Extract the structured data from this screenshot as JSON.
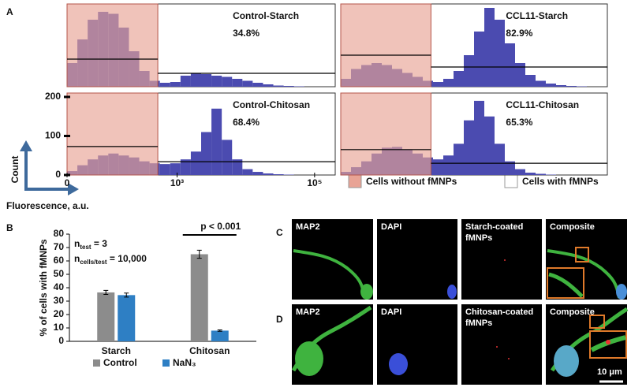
{
  "figure": {
    "panel_labels": [
      "A",
      "B",
      "C",
      "D"
    ]
  },
  "panel_a": {
    "x_label": "Fluorescence, a.u.",
    "y_label": "Count",
    "legend": [
      {
        "name": "Cells without fMNPs",
        "color": "#e8a395"
      },
      {
        "name": "Cells with fMNPs",
        "color": "#ffffff"
      }
    ]
  },
  "chart_data": [
    {
      "type": "histogram",
      "title": "Control-Starch",
      "subtitle": "34.8%",
      "color": "#4b4bb0",
      "gate_color": "#e8a395",
      "bins": [
        1.4,
        1.55,
        1.7,
        1.85,
        2,
        2.15,
        2.3,
        2.45,
        2.6,
        2.75,
        2.9,
        3.05,
        3.2,
        3.35,
        3.5,
        3.65,
        3.8,
        3.95,
        4.1,
        4.25,
        4.4,
        4.55,
        4.7,
        4.85,
        5,
        5.15,
        5.3
      ],
      "values": [
        60,
        120,
        170,
        190,
        185,
        150,
        90,
        40,
        15,
        10,
        12,
        28,
        35,
        32,
        28,
        25,
        20,
        15,
        10,
        6,
        3,
        2,
        1,
        0,
        0,
        0
      ],
      "gate_upper": 2.72,
      "gate_levels": [
        70,
        34
      ],
      "xlim": [
        1.4,
        5.3
      ],
      "ylim": [
        0,
        210
      ]
    },
    {
      "type": "histogram",
      "title": "CCL11-Starch",
      "subtitle": "82.9%",
      "color": "#4b4bb0",
      "gate_color": "#e8a395",
      "bins": [
        1.4,
        1.55,
        1.7,
        1.85,
        2,
        2.15,
        2.3,
        2.45,
        2.6,
        2.75,
        2.9,
        3.05,
        3.2,
        3.35,
        3.5,
        3.65,
        3.8,
        3.95,
        4.1,
        4.25,
        4.4,
        4.55,
        4.7,
        4.85,
        5,
        5.15,
        5.3
      ],
      "values": [
        20,
        45,
        55,
        60,
        55,
        45,
        35,
        25,
        15,
        12,
        20,
        40,
        80,
        140,
        200,
        170,
        110,
        60,
        30,
        15,
        8,
        4,
        2,
        1,
        0,
        0
      ],
      "gate_upper": 2.72,
      "gate_levels": [
        80,
        50
      ],
      "xlim": [
        1.4,
        5.3
      ],
      "ylim": [
        0,
        210
      ]
    },
    {
      "type": "histogram",
      "title": "Control-Chitosan",
      "subtitle": "68.4%",
      "color": "#4b4bb0",
      "gate_color": "#e8a395",
      "bins": [
        1.4,
        1.55,
        1.7,
        1.85,
        2,
        2.15,
        2.3,
        2.45,
        2.6,
        2.75,
        2.9,
        3.05,
        3.2,
        3.35,
        3.5,
        3.65,
        3.8,
        3.95,
        4.1,
        4.25,
        4.4,
        4.55,
        4.7,
        4.85,
        5,
        5.15,
        5.3
      ],
      "values": [
        10,
        25,
        40,
        50,
        55,
        50,
        45,
        35,
        30,
        28,
        30,
        40,
        60,
        110,
        170,
        90,
        40,
        15,
        8,
        4,
        2,
        1,
        0,
        0,
        0,
        0
      ],
      "gate_upper": 2.72,
      "gate_levels": [
        73,
        34
      ],
      "xlim": [
        1.4,
        5.3
      ],
      "ylim": [
        0,
        210
      ],
      "xticks": [
        {
          "value": 1.4,
          "label": "0"
        },
        {
          "value": 3,
          "label": "10³"
        },
        {
          "value": 5,
          "label": "10⁵"
        }
      ],
      "yticks": [
        0,
        100,
        200
      ]
    },
    {
      "type": "histogram",
      "title": "CCL11-Chitosan",
      "subtitle": "65.3%",
      "color": "#4b4bb0",
      "gate_color": "#e8a395",
      "bins": [
        1.4,
        1.55,
        1.7,
        1.85,
        2,
        2.15,
        2.3,
        2.45,
        2.6,
        2.75,
        2.9,
        3.05,
        3.2,
        3.35,
        3.5,
        3.65,
        3.8,
        3.95,
        4.1,
        4.25,
        4.4,
        4.55,
        4.7,
        4.85,
        5,
        5.15,
        5.3
      ],
      "values": [
        8,
        20,
        35,
        55,
        70,
        72,
        65,
        55,
        45,
        40,
        50,
        80,
        140,
        190,
        150,
        80,
        35,
        15,
        6,
        3,
        1,
        0,
        0,
        0,
        0,
        0
      ],
      "gate_upper": 2.72,
      "gate_levels": [
        65,
        30
      ],
      "xlim": [
        1.4,
        5.3
      ],
      "ylim": [
        0,
        210
      ]
    },
    {
      "type": "bar",
      "y_label": "% of cells with fMNPs",
      "categories": [
        "Starch",
        "Chitosan"
      ],
      "series": [
        {
          "name": "Control",
          "color": "#8c8c8c",
          "values": [
            36.5,
            65
          ],
          "errors": [
            1.5,
            3
          ]
        },
        {
          "name": "NaN₃",
          "color": "#2e7fc4",
          "values": [
            34.5,
            8
          ],
          "errors": [
            1.5,
            0.5
          ]
        }
      ],
      "ylim": [
        0,
        80
      ],
      "yticks": [
        0,
        10,
        20,
        30,
        40,
        50,
        60,
        70,
        80
      ],
      "annotations": [
        {
          "text": "n",
          "sub": "test",
          "suffix": " = 3"
        },
        {
          "text": "n",
          "sub": "cells/test",
          "suffix": " = 10,000"
        }
      ],
      "significance": {
        "label": "p < 0.001"
      }
    }
  ],
  "microscopy": {
    "rows": [
      {
        "label": "C",
        "channels": [
          "MAP2",
          "DAPI",
          "Starch-coated",
          "fMNPs",
          "Composite"
        ]
      },
      {
        "label": "D",
        "channels": [
          "MAP2",
          "DAPI",
          "Chitosan-coated",
          "fMNPs",
          "Composite"
        ]
      }
    ],
    "scale_bar": "10 μm"
  }
}
